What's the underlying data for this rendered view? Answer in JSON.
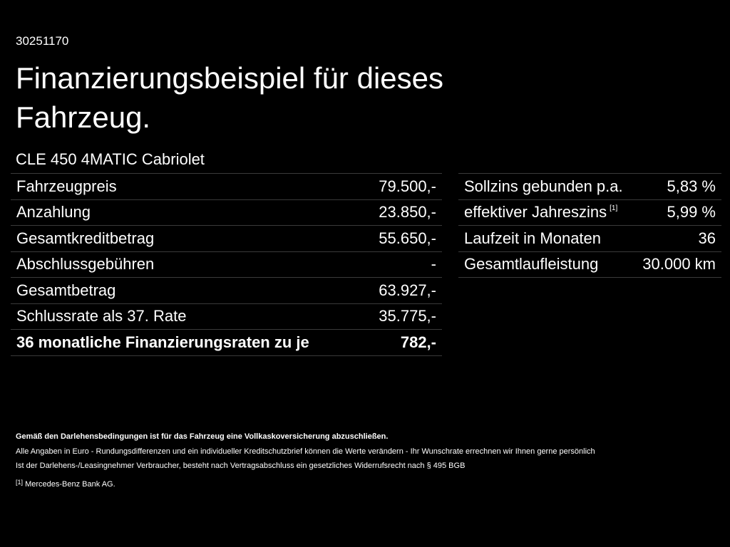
{
  "header": {
    "id": "30251170",
    "title_line1": "Finanzierungsbeispiel für dieses",
    "title_line2": "Fahrzeug.",
    "model": "CLE 450 4MATIC Cabriolet"
  },
  "left_table": {
    "rows": [
      [
        "Fahrzeugpreis",
        "79.500,-"
      ],
      [
        "Anzahlung",
        "23.850,-"
      ],
      [
        "Gesamtkreditbetrag",
        "55.650,-"
      ],
      [
        "Abschlussgebühren",
        "-"
      ],
      [
        "Gesamtbetrag",
        "63.927,-"
      ],
      [
        "Schlussrate als 37. Rate",
        "35.775,-"
      ],
      [
        "36 monatliche Finanzierungsraten zu je",
        "782,-"
      ]
    ]
  },
  "right_table": {
    "rows": [
      {
        "label": "Sollzins gebunden p.a.",
        "value": "5,83 %"
      },
      {
        "label": "effektiver Jahreszins",
        "sup": "[1]",
        "value": "5,99 %"
      },
      {
        "label": "Laufzeit in Monaten",
        "value": "36"
      },
      {
        "label": "Gesamtlaufleistung",
        "value": "30.000 km"
      }
    ]
  },
  "footer": {
    "bold_note": "Gemäß den Darlehensbedingungen ist für das Fahrzeug eine Vollkaskoversicherung abzuschließen.",
    "line1": "Alle Angaben in Euro - Rundungsdifferenzen und ein individueller Kreditschutzbrief können die Werte verändern - Ihr Wunschrate errechnen wir Ihnen gerne persönlich",
    "line2": "Ist der Darlehens-/Leasingnehmer Verbraucher, besteht nach Vertragsabschluss ein gesetzliches Widerrufsrecht nach § 495 BGB",
    "footnote_marker": "[1]",
    "footnote_text": "Mercedes-Benz Bank AG."
  }
}
